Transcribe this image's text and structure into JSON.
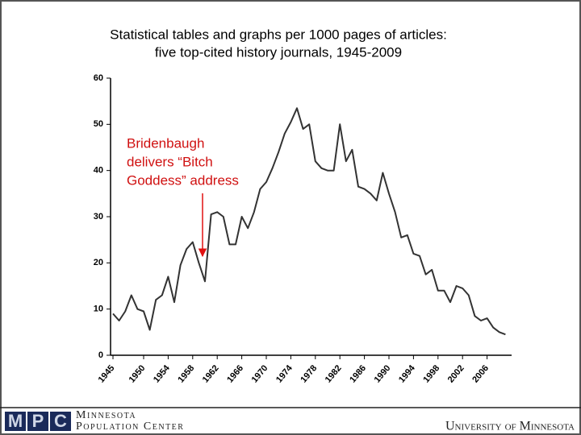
{
  "chart_data": {
    "type": "line",
    "title": "Statistical tables and graphs per 1000 pages of articles:",
    "subtitle": "five top-cited history journals, 1945-2009",
    "annotation": [
      "Bridenbaugh",
      "delivers “Bitch",
      "Goddess” address"
    ],
    "x": [
      1945,
      1946,
      1947,
      1948,
      1949,
      1950,
      1951,
      1952,
      1953,
      1954,
      1955,
      1956,
      1957,
      1958,
      1959,
      1960,
      1961,
      1962,
      1963,
      1964,
      1965,
      1966,
      1967,
      1968,
      1969,
      1970,
      1971,
      1972,
      1973,
      1974,
      1975,
      1976,
      1977,
      1978,
      1979,
      1980,
      1981,
      1982,
      1983,
      1984,
      1985,
      1986,
      1987,
      1988,
      1989,
      1990,
      1991,
      1992,
      1993,
      1994,
      1995,
      1996,
      1997,
      1998,
      1999,
      2000,
      2001,
      2002,
      2003,
      2004,
      2005,
      2006,
      2007,
      2008,
      2009
    ],
    "values": [
      9,
      7.5,
      9.5,
      13,
      10,
      9.5,
      5.5,
      12,
      13,
      17,
      11.5,
      19.5,
      23,
      24.5,
      20,
      16,
      30.5,
      31,
      30,
      24,
      24,
      30,
      27.5,
      31,
      36,
      37.5,
      40.5,
      44,
      48,
      50.5,
      53.5,
      49,
      50,
      42,
      40.5,
      40,
      40,
      50,
      42,
      44.5,
      36.5,
      36,
      35,
      33.5,
      39.5,
      35,
      31,
      25.5,
      26,
      22,
      21.5,
      17.5,
      18.5,
      14,
      14,
      11.5,
      15,
      14.5,
      13,
      8.5,
      7.5,
      8,
      6,
      5,
      4.5
    ],
    "color": "#333333",
    "xlim": [
      1945,
      2010
    ],
    "xticks": [
      1945,
      1950,
      1954,
      1958,
      1962,
      1966,
      1970,
      1974,
      1978,
      1982,
      1986,
      1990,
      1994,
      1998,
      2002,
      2006
    ],
    "ylim": [
      0,
      60
    ],
    "yticks": [
      0,
      10,
      20,
      30,
      40,
      50,
      60
    ]
  },
  "footer": {
    "logo": [
      "M",
      "P",
      "C"
    ],
    "org": [
      "Minnesota",
      "Population Center"
    ],
    "university": "University of Minnesota"
  }
}
